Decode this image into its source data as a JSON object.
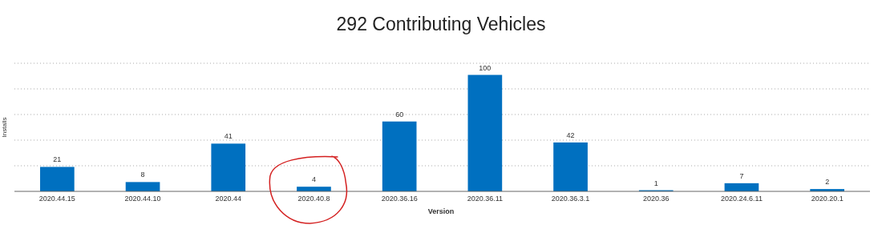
{
  "chart_data": {
    "type": "bar",
    "title": "292 Contributing Vehicles",
    "xlabel": "Version",
    "ylabel": "Installs",
    "categories": [
      "2020.44.15",
      "2020.44.10",
      "2020.44",
      "2020.40.8",
      "2020.36.16",
      "2020.36.11",
      "2020.36.3.1",
      "2020.36",
      "2020.24.6.11",
      "2020.20.1"
    ],
    "values": [
      21,
      8,
      41,
      4,
      60,
      100,
      42,
      1,
      7,
      2
    ],
    "color": "#0070c0",
    "ylim": [
      0,
      110
    ],
    "yticks": [
      {
        "value": 0,
        "label": null
      },
      {
        "value": 22,
        "label": null
      },
      {
        "value": 44,
        "label": null
      },
      {
        "value": 66,
        "label": null
      },
      {
        "value": 88,
        "label": null
      },
      {
        "value": 110,
        "label": null
      }
    ],
    "grid": "y",
    "data_labels": true,
    "tick_labels": "x"
  }
}
